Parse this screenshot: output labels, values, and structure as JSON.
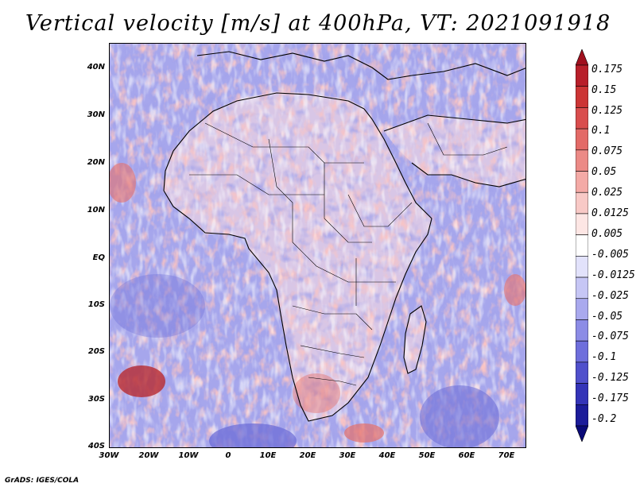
{
  "title": "Vertical velocity [m/s] at 400hPa, VT: 2021091918",
  "credit": "GrADS: IGES/COLA",
  "lat_labels": [
    "40N",
    "30N",
    "20N",
    "10N",
    "EQ",
    "10S",
    "20S",
    "30S",
    "40S"
  ],
  "lon_labels": [
    "30W",
    "20W",
    "10W",
    "0",
    "10E",
    "20E",
    "30E",
    "40E",
    "50E",
    "60E",
    "70E"
  ],
  "colorbar": {
    "labels": [
      "0.175",
      "0.15",
      "0.125",
      "0.1",
      "0.075",
      "0.05",
      "0.025",
      "0.0125",
      "0.005",
      "-0.005",
      "-0.0125",
      "-0.025",
      "-0.05",
      "-0.075",
      "-0.1",
      "-0.125",
      "-0.175",
      "-0.2"
    ],
    "colors": [
      "#a0101e",
      "#b81f2a",
      "#cc3535",
      "#d94d4d",
      "#e36a67",
      "#ec8a86",
      "#f4aaa6",
      "#f8c9c6",
      "#fde6e4",
      "#ffffff",
      "#e2e2fb",
      "#c6c6f5",
      "#a9a9ee",
      "#8c8ce6",
      "#6e6edc",
      "#5050cc",
      "#3434b8",
      "#1c1c9a",
      "#0a0a78"
    ]
  },
  "palette": {
    "ocean": "#a6a6ec",
    "ocean_dark": "#6a6ad6",
    "land": "#d8c6e6",
    "red": "#e6706a",
    "red_dark": "#b82a30",
    "coast": "#000000"
  }
}
